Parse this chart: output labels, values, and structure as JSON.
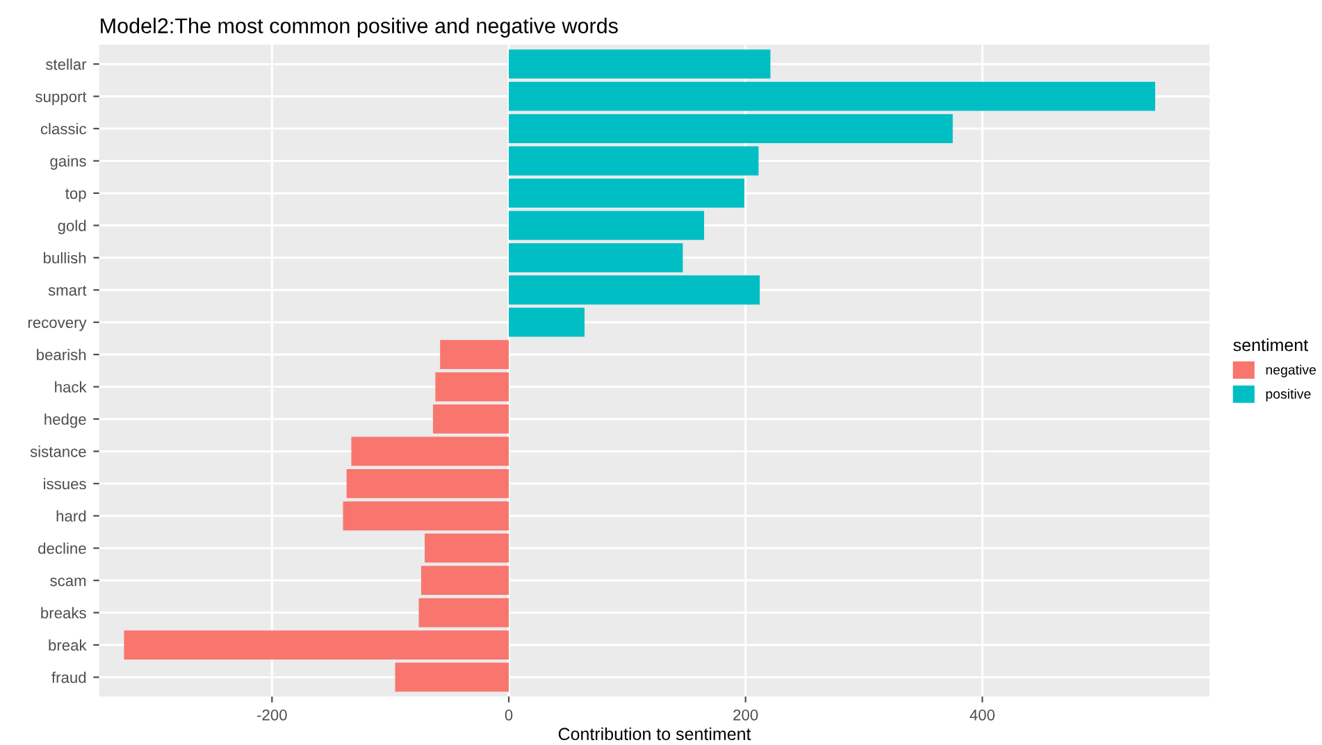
{
  "chart_data": {
    "type": "bar",
    "orientation": "horizontal",
    "title": "Model2:The most common positive and negative words",
    "xlabel": "Contribution to sentiment",
    "legend_title": "sentiment",
    "categories": [
      "stellar",
      "support",
      "classic",
      "gains",
      "top",
      "gold",
      "bullish",
      "smart",
      "recovery",
      "bearish",
      "hack",
      "hedge",
      "sistance",
      "issues",
      "hard",
      "decline",
      "scam",
      "breaks",
      "break",
      "fraud"
    ],
    "series": [
      {
        "name": "negative",
        "color": "#f8766d",
        "values": [
          null,
          null,
          null,
          null,
          null,
          null,
          null,
          null,
          null,
          -58,
          -62,
          -64,
          -133,
          -137,
          -140,
          -71,
          -74,
          -76,
          -325,
          -96
        ]
      },
      {
        "name": "positive",
        "color": "#00bfc4",
        "values": [
          221,
          546,
          375,
          211,
          199,
          165,
          147,
          212,
          64,
          null,
          null,
          null,
          null,
          null,
          null,
          null,
          null,
          null,
          null,
          null
        ]
      }
    ],
    "xlim": [
      -346,
      592
    ],
    "xticks": [
      -200,
      0,
      200,
      400
    ],
    "grid": true,
    "legend": "right"
  }
}
